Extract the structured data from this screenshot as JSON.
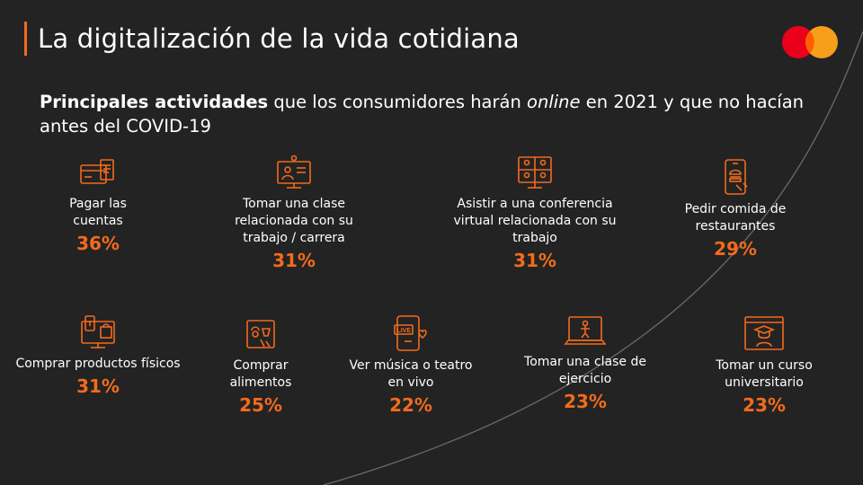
{
  "title": "La digitalización de la vida cotidiana",
  "subtitle": {
    "bold": "Principales actividades",
    "part1": " que los consumidores harán ",
    "italic": "online",
    "part2": " en 2021 y que no hacían antes del COVID-19"
  },
  "colors": {
    "accent": "#f26b1d",
    "background": "#232323",
    "mc_red": "#eb001b",
    "mc_orange": "#f79e1b"
  },
  "items": [
    {
      "label": "Pagar las cuentas",
      "value": "36%",
      "icon": "bill-payment-icon"
    },
    {
      "label": "Tomar una clase relacionada con su trabajo / carrera",
      "value": "31%",
      "icon": "online-class-icon"
    },
    {
      "label": "Asistir a una conferencia virtual relacionada con su trabajo",
      "value": "31%",
      "icon": "video-conference-icon"
    },
    {
      "label": "Pedir comida de restaurantes",
      "value": "29%",
      "icon": "food-delivery-phone-icon"
    },
    {
      "label": "Comprar productos físicos",
      "value": "31%",
      "icon": "online-shopping-icon"
    },
    {
      "label": "Comprar alimentos",
      "value": "25%",
      "icon": "grocery-icon"
    },
    {
      "label": "Ver música o teatro en vivo",
      "value": "22%",
      "icon": "live-stream-icon"
    },
    {
      "label": "Tomar una clase de ejercicio",
      "value": "23%",
      "icon": "exercise-laptop-icon"
    },
    {
      "label": "Tomar un curso universitario",
      "value": "23%",
      "icon": "graduation-course-icon"
    }
  ]
}
